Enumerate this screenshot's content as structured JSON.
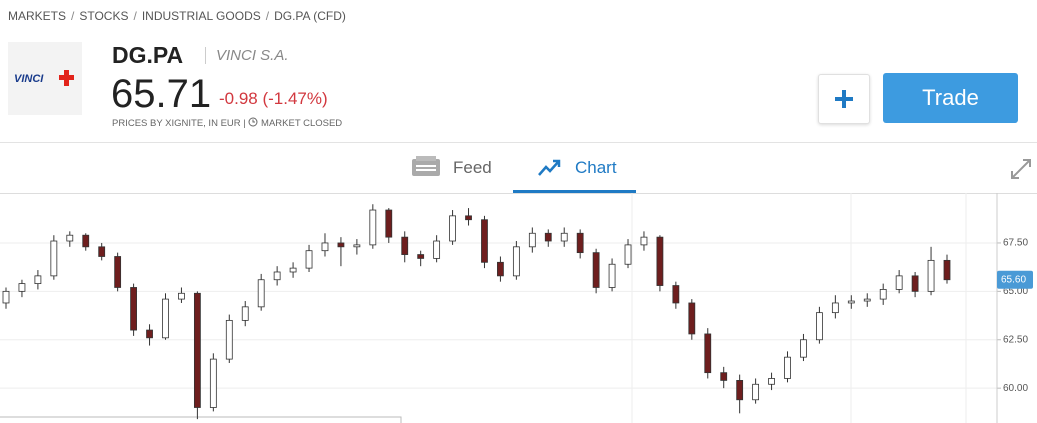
{
  "breadcrumbs": [
    "MARKETS",
    "STOCKS",
    "INDUSTRIAL GOODS",
    "DG.PA (CFD)"
  ],
  "header": {
    "logo": "VINCI",
    "symbol": "DG.PA",
    "name": "VINCI S.A.",
    "price": "65.71",
    "change": "-0.98 (-1.47%)",
    "source": "PRICES BY XIGNITE, IN EUR |",
    "status": "MARKET CLOSED",
    "trade": "Trade"
  },
  "tabs": [
    "Feed",
    "Chart"
  ],
  "chart_data": {
    "type": "candlestick",
    "candles": [
      [
        64.4,
        65.2,
        64.1,
        65.0
      ],
      [
        65.0,
        65.6,
        64.7,
        65.4
      ],
      [
        65.4,
        66.1,
        65.1,
        65.8
      ],
      [
        65.8,
        67.9,
        65.6,
        67.6
      ],
      [
        67.6,
        68.1,
        67.3,
        67.9
      ],
      [
        67.9,
        68.0,
        67.1,
        67.3
      ],
      [
        67.3,
        67.5,
        66.6,
        66.8
      ],
      [
        66.8,
        67.0,
        65.0,
        65.2
      ],
      [
        65.2,
        65.4,
        62.7,
        63.0
      ],
      [
        63.0,
        63.3,
        62.2,
        62.6
      ],
      [
        62.6,
        64.9,
        62.5,
        64.6
      ],
      [
        64.6,
        65.2,
        64.4,
        64.9
      ],
      [
        64.9,
        65.0,
        58.4,
        59.0
      ],
      [
        59.0,
        61.8,
        58.8,
        61.5
      ],
      [
        61.5,
        63.8,
        61.3,
        63.5
      ],
      [
        63.5,
        64.5,
        63.2,
        64.2
      ],
      [
        64.2,
        65.9,
        64.0,
        65.6
      ],
      [
        65.6,
        66.3,
        65.3,
        66.0
      ],
      [
        66.0,
        66.5,
        65.7,
        66.2
      ],
      [
        66.2,
        67.4,
        66.0,
        67.1
      ],
      [
        67.1,
        68.0,
        66.8,
        67.5
      ],
      [
        67.5,
        67.8,
        66.3,
        67.3
      ],
      [
        67.3,
        67.7,
        66.9,
        67.4
      ],
      [
        67.4,
        69.5,
        67.2,
        69.2
      ],
      [
        69.2,
        69.3,
        67.5,
        67.8
      ],
      [
        67.8,
        68.1,
        66.5,
        66.9
      ],
      [
        66.9,
        67.1,
        66.3,
        66.7
      ],
      [
        66.7,
        67.9,
        66.5,
        67.6
      ],
      [
        67.6,
        69.2,
        67.4,
        68.9
      ],
      [
        68.9,
        69.3,
        68.4,
        68.7
      ],
      [
        68.7,
        68.9,
        66.2,
        66.5
      ],
      [
        66.5,
        66.8,
        65.5,
        65.8
      ],
      [
        65.8,
        67.6,
        65.6,
        67.3
      ],
      [
        67.3,
        68.3,
        67.0,
        68.0
      ],
      [
        68.0,
        68.2,
        67.3,
        67.6
      ],
      [
        67.6,
        68.3,
        67.3,
        68.0
      ],
      [
        68.0,
        68.2,
        66.7,
        67.0
      ],
      [
        67.0,
        67.2,
        64.9,
        65.2
      ],
      [
        65.2,
        66.7,
        65.0,
        66.4
      ],
      [
        66.4,
        67.7,
        66.2,
        67.4
      ],
      [
        67.4,
        68.1,
        67.1,
        67.8
      ],
      [
        67.8,
        67.9,
        65.0,
        65.3
      ],
      [
        65.3,
        65.5,
        64.1,
        64.4
      ],
      [
        64.4,
        64.6,
        62.5,
        62.8
      ],
      [
        62.8,
        63.1,
        60.5,
        60.8
      ],
      [
        60.8,
        61.1,
        60.0,
        60.4
      ],
      [
        60.4,
        60.7,
        58.7,
        59.4
      ],
      [
        59.4,
        60.5,
        59.2,
        60.2
      ],
      [
        60.2,
        60.8,
        59.9,
        60.5
      ],
      [
        60.5,
        61.9,
        60.3,
        61.6
      ],
      [
        61.6,
        62.8,
        61.4,
        62.5
      ],
      [
        62.5,
        64.2,
        62.3,
        63.9
      ],
      [
        63.9,
        64.8,
        63.6,
        64.4
      ],
      [
        64.4,
        64.8,
        64.1,
        64.5
      ],
      [
        64.5,
        64.9,
        64.2,
        64.6
      ],
      [
        64.6,
        65.4,
        64.3,
        65.1
      ],
      [
        65.1,
        66.1,
        64.9,
        65.8
      ],
      [
        65.8,
        66.0,
        64.7,
        65.0
      ],
      [
        65.0,
        67.3,
        64.8,
        66.6
      ],
      [
        66.6,
        66.9,
        65.4,
        65.6
      ]
    ],
    "ylim": [
      58.2,
      70.08
    ],
    "yticks": [
      {
        "value": 67.5,
        "label": "67.50"
      },
      {
        "value": 65,
        "label": "65.00"
      },
      {
        "value": 62.5,
        "label": "62.50"
      },
      {
        "value": 60,
        "label": "60.00"
      }
    ],
    "last_price": {
      "value": 65.6,
      "label": "65.60"
    },
    "up_color": "#ffffff",
    "down_color": "#6e1e1e",
    "grid": true
  }
}
